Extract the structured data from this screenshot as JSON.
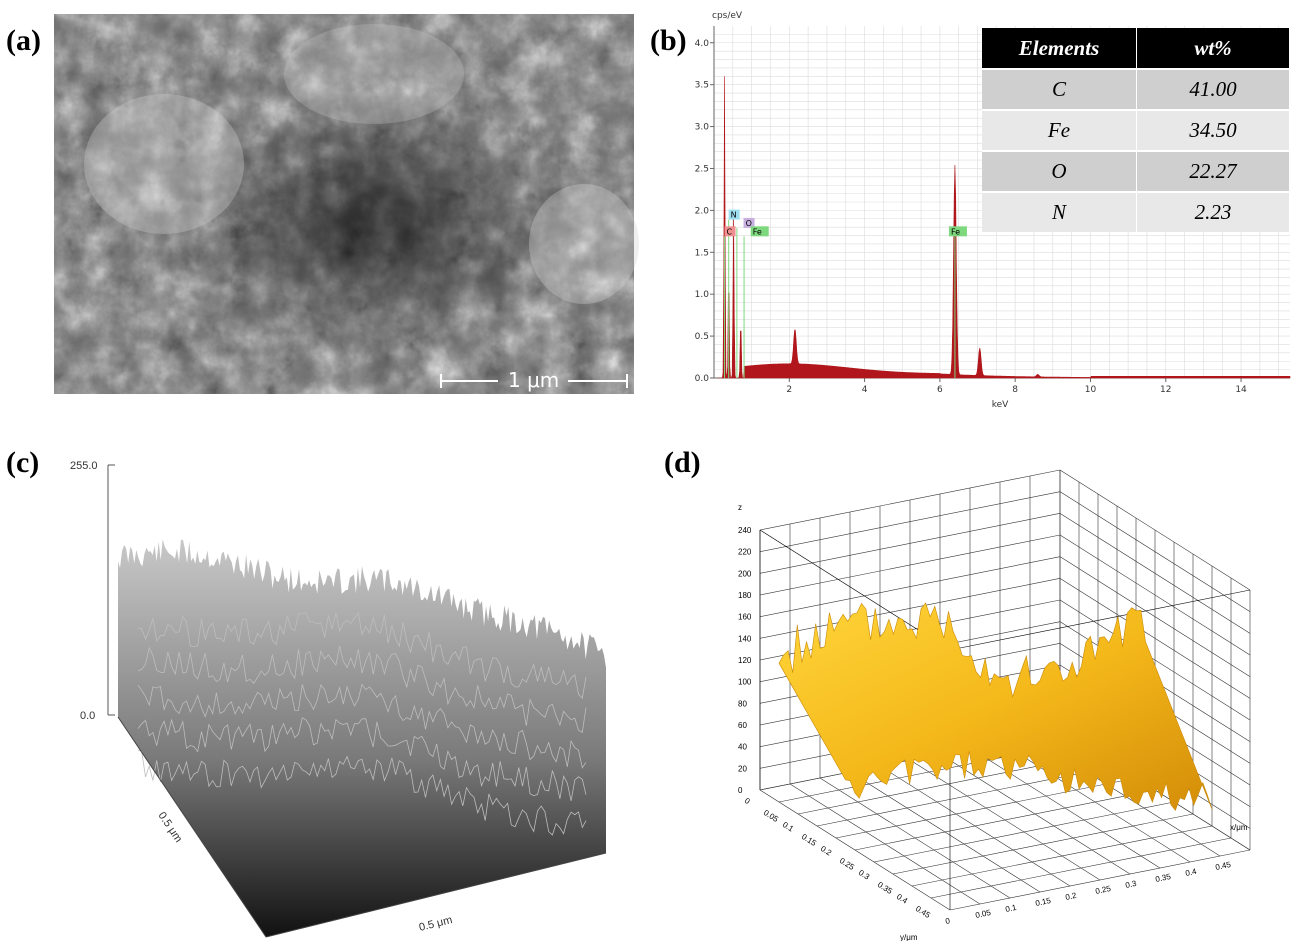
{
  "panels": {
    "a": {
      "label": "(a)",
      "scale_text": "1 μm"
    },
    "b": {
      "label": "(b)"
    },
    "c": {
      "label": "(c)"
    },
    "d": {
      "label": "(d)"
    }
  },
  "colors": {
    "spectrum": "#b0161b",
    "marker_green": "#7ed87e",
    "table_header": "#000000",
    "surface_gold": "#f4b81a"
  },
  "eds_table": {
    "headers": [
      "Elements",
      "wt%"
    ],
    "rows": [
      {
        "element": "C",
        "wt": "41.00"
      },
      {
        "element": "Fe",
        "wt": "34.50"
      },
      {
        "element": "O",
        "wt": "22.27"
      },
      {
        "element": "N",
        "wt": "2.23"
      }
    ]
  },
  "chart_data": [
    {
      "type": "line",
      "ylabel": "cps/eV",
      "xlabel": "keV",
      "xlim": [
        0,
        15.3
      ],
      "ylim": [
        0,
        4.2
      ],
      "x_ticks": [
        "2",
        "4",
        "6",
        "8",
        "10",
        "12",
        "14"
      ],
      "y_ticks": [
        "0.0",
        "0.5",
        "1.0",
        "1.5",
        "2.0",
        "2.5",
        "3.0",
        "3.5",
        "4.0"
      ],
      "grid": true,
      "peaks": [
        {
          "x": 0.28,
          "y": 3.6
        },
        {
          "x": 0.39,
          "y": 1.3
        },
        {
          "x": 0.52,
          "y": 2.0
        },
        {
          "x": 0.71,
          "y": 0.72
        },
        {
          "x": 2.15,
          "y": 0.42
        },
        {
          "x": 6.4,
          "y": 2.5
        },
        {
          "x": 7.06,
          "y": 0.33
        },
        {
          "x": 8.6,
          "y": 0.03
        }
      ],
      "element_markers": [
        {
          "label": "N",
          "x": 0.39,
          "color": "#9fe0f0"
        },
        {
          "label": "O",
          "x": 0.52,
          "color": "#c7b0e0"
        },
        {
          "label": "C",
          "x": 0.28,
          "color": "#f09090"
        },
        {
          "label": "Fe",
          "x": 0.71,
          "color": "#7ed87e"
        },
        {
          "label": "Fe",
          "x": 6.4,
          "color": "#7ed87e"
        }
      ]
    },
    {
      "type": "area",
      "z_ticks": [
        "255.0",
        "0.0"
      ],
      "axis_labels": [
        "0.5 μm",
        "0.5 μm"
      ]
    },
    {
      "type": "area",
      "zlabel": "z",
      "z_ticks": [
        "0",
        "20",
        "40",
        "60",
        "80",
        "100",
        "120",
        "140",
        "160",
        "180",
        "200",
        "220",
        "240"
      ],
      "y_ticks": [
        "0",
        "0.05",
        "0.1",
        "0.15",
        "0.2",
        "0.25",
        "0.3",
        "0.35",
        "0.4",
        "0.45"
      ],
      "ylabel": "y/μm",
      "x_ticks": [
        "0",
        "0.05",
        "0.1",
        "0.15",
        "0.2",
        "0.25",
        "0.3",
        "0.35",
        "0.4",
        "0.45"
      ],
      "xlabel": "x/μm"
    }
  ]
}
